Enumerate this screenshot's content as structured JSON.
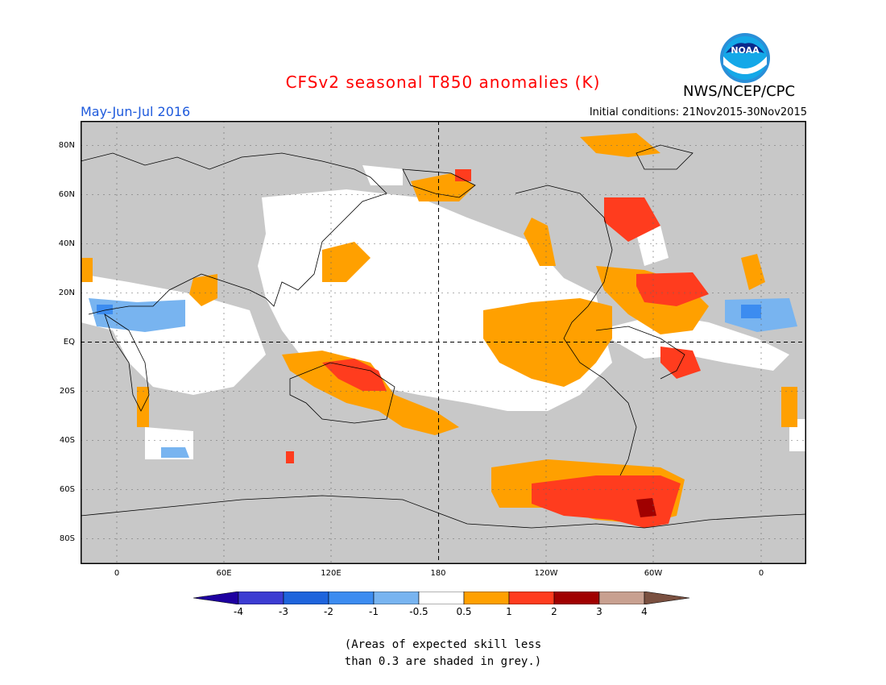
{
  "title": "CFSv2 seasonal T850 anomalies (K)",
  "agency": "NWS/NCEP/CPC",
  "logo_text": "NOAA",
  "season": "May-Jun-Jul 2016",
  "initial_conditions": "Initial conditions: 21Nov2015-30Nov2015",
  "colors": {
    "title": "#ff0000",
    "season": "#1e5adc",
    "grey_skill": "#c8c8c8",
    "ocean_white": "#ffffff",
    "light_orange": "#ffa000",
    "orange_red": "#ff3c1e",
    "dark_red": "#a00000",
    "brown": "#c8a090",
    "light_blue": "#78b4f0",
    "blue": "#3c8cf0"
  },
  "lat_labels": [
    "80N",
    "60N",
    "40N",
    "20N",
    "EQ",
    "20S",
    "40S",
    "60S",
    "80S"
  ],
  "lon_labels": [
    "0",
    "60E",
    "120E",
    "180",
    "120W",
    "60W",
    "0"
  ],
  "colorbar": {
    "ticks": [
      "-4",
      "-3",
      "-2",
      "-1",
      "-0.5",
      "0.5",
      "1",
      "2",
      "3",
      "4"
    ],
    "colors": [
      "#1e00a0",
      "#3c3cd2",
      "#1e64dc",
      "#3c8cf0",
      "#78b4f0",
      "#ffffff",
      "#ffa000",
      "#ff3c1e",
      "#a00000",
      "#c8a090",
      "#7a5040"
    ]
  },
  "note": {
    "line1": "(Areas of expected skill less",
    "line2": "than 0.3 are shaded in grey.)"
  }
}
